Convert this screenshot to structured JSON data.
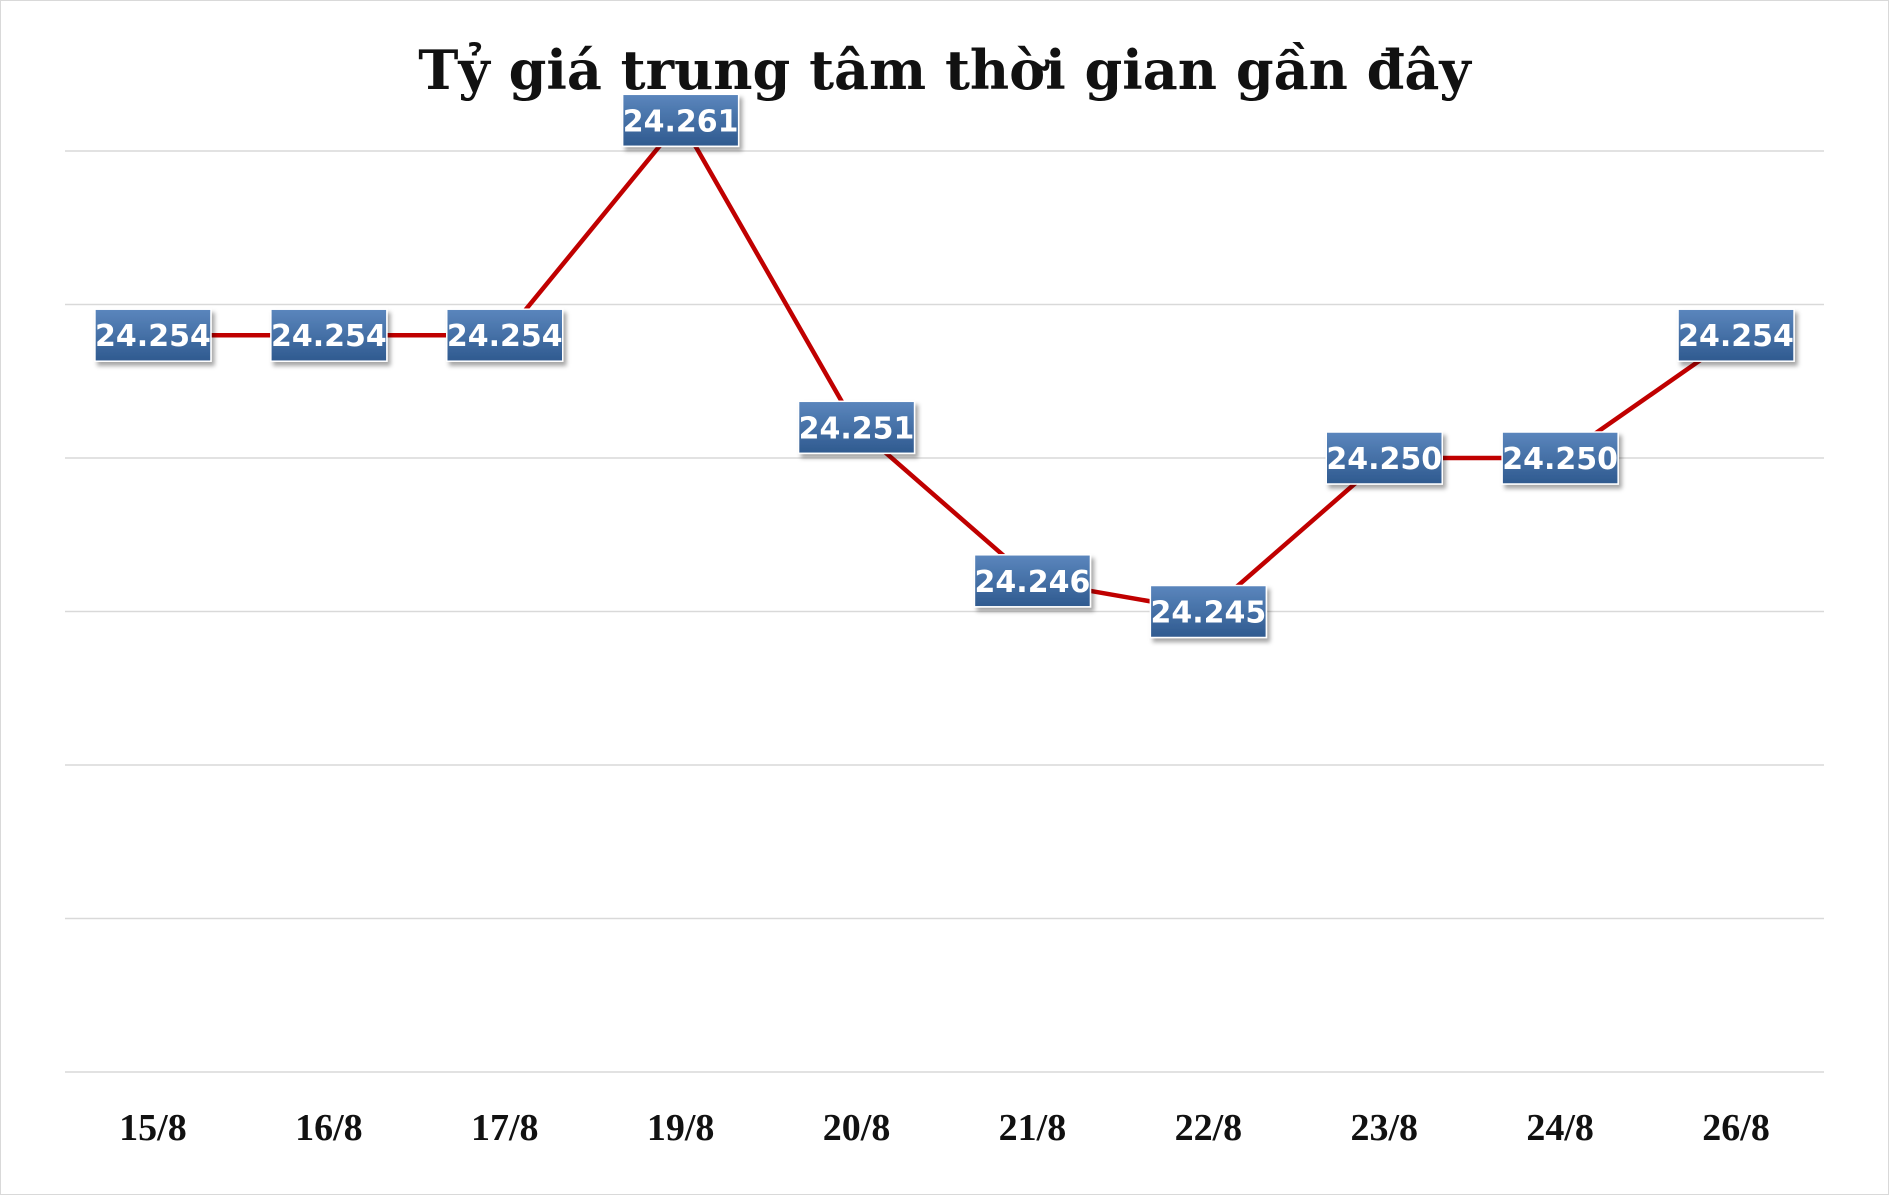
{
  "chart_data": {
    "type": "line",
    "title": "Tỷ giá trung tâm thời gian gần đây",
    "xlabel": "",
    "ylabel": "",
    "categories": [
      "15/8",
      "16/8",
      "17/8",
      "19/8",
      "20/8",
      "21/8",
      "22/8",
      "23/8",
      "24/8",
      "26/8"
    ],
    "values": [
      24254,
      24254,
      24254,
      24261,
      24251,
      24246,
      24245,
      24250,
      24250,
      24254
    ],
    "labels": [
      "24.254",
      "24.254",
      "24.254",
      "24.261",
      "24.251",
      "24.246",
      "24.245",
      "24.250",
      "24.250",
      "24.254"
    ],
    "ylim": [
      24230,
      24260
    ],
    "grid": true,
    "legend": "none",
    "colors": {
      "line": "#c00000",
      "label_bg_top": "#5b86bd",
      "label_bg_bottom": "#2f5a8f",
      "grid": "#d9d9d9"
    }
  }
}
